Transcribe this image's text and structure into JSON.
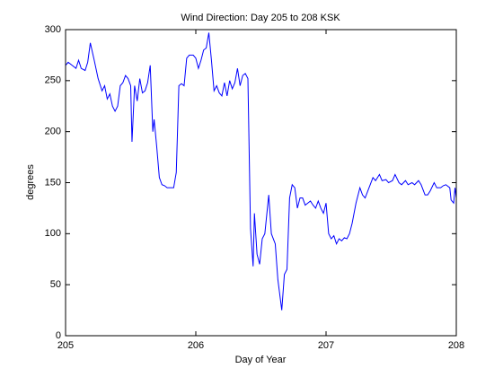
{
  "chart_data": {
    "type": "line",
    "title": "Wind Direction: Day 205 to 208 KSK",
    "xlabel": "Day of Year",
    "ylabel": "degrees",
    "color": "#0000ff",
    "xlim": [
      205,
      208
    ],
    "xticks": [
      205,
      206,
      207,
      208
    ],
    "ylim": [
      0,
      300
    ],
    "yticks": [
      0,
      50,
      100,
      150,
      200,
      250,
      300
    ],
    "x": [
      205.0,
      205.02,
      205.05,
      205.08,
      205.1,
      205.12,
      205.15,
      205.17,
      205.19,
      205.22,
      205.25,
      205.28,
      205.3,
      205.32,
      205.34,
      205.36,
      205.38,
      205.4,
      205.42,
      205.44,
      205.46,
      205.48,
      205.5,
      205.51,
      205.53,
      205.55,
      205.57,
      205.59,
      205.61,
      205.63,
      205.65,
      205.67,
      205.68,
      205.7,
      205.72,
      205.74,
      205.76,
      205.78,
      205.8,
      205.83,
      205.85,
      205.87,
      205.89,
      205.91,
      205.93,
      205.95,
      205.98,
      206.0,
      206.02,
      206.04,
      206.06,
      206.08,
      206.1,
      206.12,
      206.14,
      206.16,
      206.18,
      206.2,
      206.22,
      206.24,
      206.26,
      206.28,
      206.3,
      206.32,
      206.34,
      206.36,
      206.38,
      206.4,
      206.42,
      206.44,
      206.45,
      206.47,
      206.49,
      206.51,
      206.53,
      206.56,
      206.58,
      206.61,
      206.63,
      206.66,
      206.68,
      206.7,
      206.72,
      206.74,
      206.76,
      206.78,
      206.8,
      206.82,
      206.84,
      206.86,
      206.88,
      206.9,
      206.92,
      206.94,
      206.96,
      206.98,
      207.0,
      207.02,
      207.04,
      207.06,
      207.08,
      207.1,
      207.12,
      207.14,
      207.16,
      207.18,
      207.2,
      207.23,
      207.26,
      207.28,
      207.3,
      207.33,
      207.36,
      207.38,
      207.41,
      207.43,
      207.46,
      207.48,
      207.51,
      207.53,
      207.56,
      207.58,
      207.61,
      207.63,
      207.66,
      207.68,
      207.71,
      207.73,
      207.76,
      207.78,
      207.8,
      207.83,
      207.85,
      207.88,
      207.9,
      207.92,
      207.95,
      207.96,
      207.98,
      207.99,
      208.0
    ],
    "values": [
      265,
      268,
      265,
      262,
      270,
      262,
      260,
      268,
      287,
      270,
      252,
      240,
      245,
      232,
      237,
      225,
      220,
      225,
      245,
      248,
      255,
      252,
      245,
      190,
      245,
      230,
      252,
      238,
      240,
      248,
      265,
      200,
      212,
      185,
      155,
      148,
      147,
      145,
      145,
      145,
      160,
      245,
      247,
      245,
      272,
      275,
      275,
      272,
      262,
      270,
      280,
      282,
      297,
      270,
      240,
      245,
      238,
      235,
      248,
      235,
      250,
      242,
      248,
      262,
      245,
      255,
      257,
      252,
      105,
      68,
      120,
      80,
      70,
      95,
      100,
      138,
      100,
      90,
      55,
      25,
      60,
      65,
      135,
      148,
      145,
      125,
      135,
      135,
      128,
      130,
      132,
      128,
      125,
      132,
      125,
      120,
      130,
      100,
      95,
      98,
      90,
      95,
      93,
      96,
      95,
      100,
      110,
      130,
      145,
      138,
      135,
      145,
      155,
      152,
      158,
      152,
      153,
      150,
      152,
      158,
      150,
      148,
      152,
      148,
      150,
      148,
      152,
      148,
      138,
      138,
      142,
      150,
      145,
      145,
      147,
      148,
      145,
      133,
      130,
      145,
      135
    ]
  }
}
